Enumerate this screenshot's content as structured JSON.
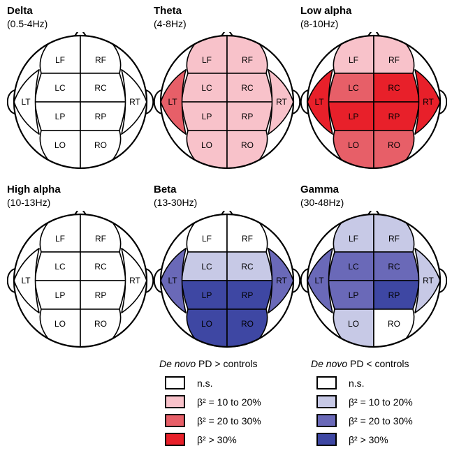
{
  "regions": [
    "LF",
    "RF",
    "LC",
    "RC",
    "LP",
    "RP",
    "LO",
    "RO",
    "LT",
    "RT"
  ],
  "colors": {
    "ns": "#ffffff",
    "pos1": "#f8c2ca",
    "pos2": "#e75f68",
    "pos3": "#e8202a",
    "neg1": "#c7c9e6",
    "neg2": "#6a69b8",
    "neg3": "#3e47a3"
  },
  "panels": [
    {
      "title": "Delta",
      "band": "(0.5-4Hz)",
      "fills": {
        "LF": "ns",
        "RF": "ns",
        "LC": "ns",
        "RC": "ns",
        "LP": "ns",
        "RP": "ns",
        "LO": "ns",
        "RO": "ns",
        "LT": "ns",
        "RT": "ns"
      }
    },
    {
      "title": "Theta",
      "band": "(4-8Hz)",
      "fills": {
        "LF": "pos1",
        "RF": "pos1",
        "LC": "pos1",
        "RC": "pos1",
        "LP": "pos1",
        "RP": "pos1",
        "LO": "pos1",
        "RO": "pos1",
        "LT": "pos2",
        "RT": "pos1"
      }
    },
    {
      "title": "Low alpha",
      "band": "(8-10Hz)",
      "fills": {
        "LF": "pos1",
        "RF": "pos1",
        "LC": "pos2",
        "RC": "pos3",
        "LP": "pos3",
        "RP": "pos3",
        "LO": "pos2",
        "RO": "pos2",
        "LT": "pos3",
        "RT": "pos3"
      }
    },
    {
      "title": "High alpha",
      "band": "(10-13Hz)",
      "fills": {
        "LF": "ns",
        "RF": "ns",
        "LC": "ns",
        "RC": "ns",
        "LP": "ns",
        "RP": "ns",
        "LO": "ns",
        "RO": "ns",
        "LT": "ns",
        "RT": "ns"
      }
    },
    {
      "title": "Beta",
      "band": "(13-30Hz)",
      "fills": {
        "LF": "ns",
        "RF": "ns",
        "LC": "neg1",
        "RC": "neg1",
        "LP": "neg3",
        "RP": "neg3",
        "LO": "neg3",
        "RO": "neg3",
        "LT": "neg2",
        "RT": "neg2"
      }
    },
    {
      "title": "Gamma",
      "band": "(30-48Hz)",
      "fills": {
        "LF": "neg1",
        "RF": "neg1",
        "LC": "neg2",
        "RC": "neg2",
        "LP": "neg2",
        "RP": "neg3",
        "LO": "neg1",
        "RO": "ns",
        "LT": "neg2",
        "RT": "neg1"
      }
    }
  ],
  "legend": {
    "positive": {
      "heading_italic": "De novo",
      "heading_rest": " PD > controls",
      "items": [
        {
          "label": "n.s.",
          "color": "ns"
        },
        {
          "label": "β² = 10 to 20%",
          "color": "pos1"
        },
        {
          "label": "β² = 20 to 30%",
          "color": "pos2"
        },
        {
          "label": "β² > 30%",
          "color": "pos3"
        }
      ]
    },
    "negative": {
      "heading_italic": "De novo",
      "heading_rest": " PD < controls",
      "items": [
        {
          "label": "n.s.",
          "color": "ns"
        },
        {
          "label": "β² = 10 to 20%",
          "color": "neg1"
        },
        {
          "label": "β² = 20 to 30%",
          "color": "neg2"
        },
        {
          "label": "β² > 30%",
          "color": "neg3"
        }
      ]
    }
  }
}
